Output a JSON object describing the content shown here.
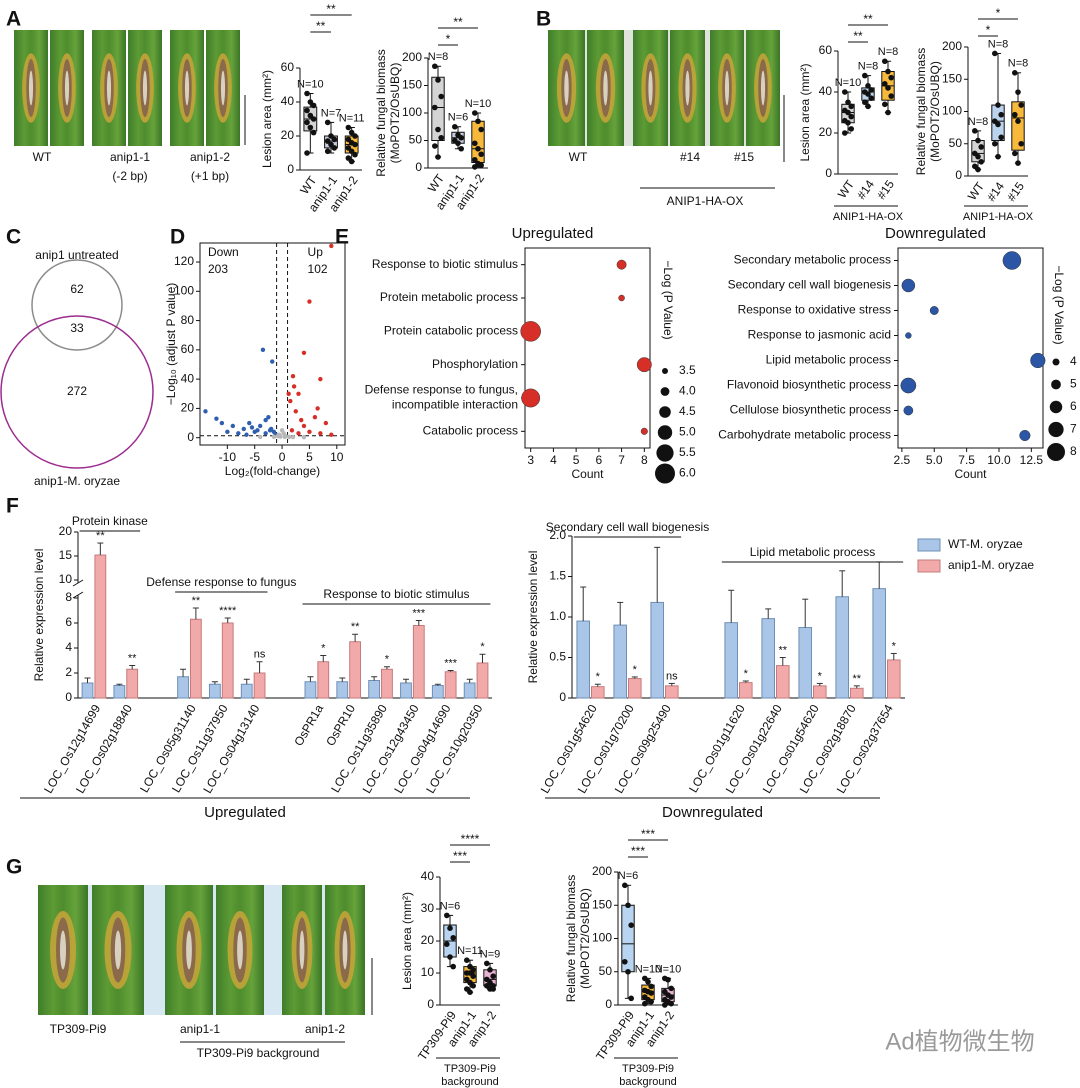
{
  "panel_labels": [
    "A",
    "B",
    "C",
    "D",
    "E",
    "F",
    "G"
  ],
  "photos": [
    {
      "captions": [
        [
          "WT"
        ],
        [
          "anip1-1",
          "(-2 bp)"
        ],
        [
          "anip1-2",
          "(+1 bp)"
        ]
      ]
    },
    {
      "captions": [
        [
          "WT"
        ],
        [
          "#14"
        ],
        [
          "#15"
        ]
      ],
      "group_label": "ANIP1-HA-OX"
    },
    {
      "captions": [
        [
          "TP309-Pi9"
        ],
        [
          "anip1-1"
        ],
        [
          "anip1-2"
        ]
      ],
      "group_label": "TP309-Pi9 background"
    }
  ],
  "venn": {
    "set_labels": [
      "anip1 untreated",
      "anip1-M. oryzae"
    ],
    "only_first": 62,
    "overlap": 33,
    "only_second": 272
  },
  "watermark": "Ad植物微生物",
  "chart_data": [
    {
      "type": "box",
      "ylabel": [
        "Lesion area (mm²)"
      ],
      "categories": [
        "WT",
        "anip1-1",
        "anip1-2"
      ],
      "colors": [
        "#d4d4d4",
        "#c8cbe0",
        "#f6b93b"
      ],
      "ylim": [
        0,
        60
      ],
      "yticks": [
        0,
        20,
        40,
        60
      ],
      "n_labels": [
        "N=10",
        "N=7",
        "N=11"
      ],
      "significance": [
        null,
        "**",
        "**"
      ],
      "boxes": [
        {
          "min": 10,
          "q1": 23,
          "median": 30,
          "q3": 37,
          "max": 45,
          "points": [
            45,
            40,
            38,
            35,
            32,
            30,
            28,
            25,
            22,
            10
          ]
        },
        {
          "min": 10,
          "q1": 13,
          "median": 17,
          "q3": 20,
          "max": 28,
          "points": [
            28,
            20,
            18,
            17,
            15,
            13,
            11
          ]
        },
        {
          "min": 5,
          "q1": 10,
          "median": 15,
          "q3": 20,
          "max": 25,
          "points": [
            25,
            22,
            20,
            18,
            16,
            15,
            13,
            11,
            9,
            7,
            5
          ]
        }
      ]
    },
    {
      "type": "box",
      "ylabel": [
        "Relative fungal biomass",
        "(MoPOT2/OsUBQ)"
      ],
      "categories": [
        "WT",
        "anip1-1",
        "anip1-2"
      ],
      "colors": [
        "#d4d4d4",
        "#c5cbe0",
        "#f6b93b"
      ],
      "ylim": [
        0,
        200
      ],
      "yticks": [
        0,
        50,
        100,
        150,
        200
      ],
      "n_labels": [
        "N=8",
        "N=6",
        "N=10"
      ],
      "significance": [
        null,
        "*",
        "**"
      ],
      "boxes": [
        {
          "min": 20,
          "q1": 50,
          "median": 110,
          "q3": 165,
          "max": 185,
          "points": [
            185,
            160,
            130,
            110,
            70,
            55,
            40,
            20
          ]
        },
        {
          "min": 35,
          "q1": 45,
          "median": 55,
          "q3": 65,
          "max": 75,
          "points": [
            75,
            60,
            55,
            50,
            45,
            35
          ]
        },
        {
          "min": 2,
          "q1": 10,
          "median": 35,
          "q3": 85,
          "max": 100,
          "points": [
            100,
            85,
            70,
            45,
            35,
            25,
            15,
            8,
            5,
            2
          ]
        }
      ]
    },
    {
      "type": "box",
      "ylabel": [
        "Lesion area (mm²)"
      ],
      "categories": [
        "WT",
        "#14",
        "#15"
      ],
      "colors": [
        "#d4d4d4",
        "#bcd3ee",
        "#f6b93b"
      ],
      "group_label": [
        "ANIP1-HA-OX"
      ],
      "ylim": [
        0,
        60
      ],
      "yticks": [
        0,
        20,
        40,
        60
      ],
      "n_labels": [
        "N=10",
        "N=8",
        "N=8"
      ],
      "significance": [
        null,
        "**",
        "**"
      ],
      "boxes": [
        {
          "min": 20,
          "q1": 25,
          "median": 30,
          "q3": 34,
          "max": 40,
          "points": [
            40,
            35,
            33,
            31,
            30,
            28,
            26,
            25,
            22,
            20
          ]
        },
        {
          "min": 33,
          "q1": 36,
          "median": 40,
          "q3": 42,
          "max": 48,
          "points": [
            48,
            43,
            41,
            40,
            39,
            37,
            35,
            33
          ]
        },
        {
          "min": 30,
          "q1": 36,
          "median": 43,
          "q3": 50,
          "max": 55,
          "points": [
            55,
            50,
            47,
            44,
            42,
            38,
            34,
            30
          ]
        }
      ]
    },
    {
      "type": "box",
      "ylabel": [
        "Relative fungal biomass",
        "(MoPOT2/OsUBQ)"
      ],
      "categories": [
        "WT",
        "#14",
        "#15"
      ],
      "colors": [
        "#d4d4d4",
        "#bcd3ee",
        "#f6b93b"
      ],
      "group_label": [
        "ANIP1-HA-OX"
      ],
      "ylim": [
        0,
        200
      ],
      "yticks": [
        0,
        50,
        100,
        150,
        200
      ],
      "n_labels": [
        "N=8",
        "N=8",
        "N=8"
      ],
      "significance": [
        null,
        "*",
        "*"
      ],
      "boxes": [
        {
          "min": 10,
          "q1": 22,
          "median": 35,
          "q3": 55,
          "max": 70,
          "points": [
            70,
            55,
            45,
            35,
            30,
            22,
            15,
            10
          ]
        },
        {
          "min": 30,
          "q1": 55,
          "median": 85,
          "q3": 110,
          "max": 190,
          "points": [
            190,
            110,
            95,
            85,
            80,
            60,
            50,
            30
          ]
        },
        {
          "min": 20,
          "q1": 40,
          "median": 90,
          "q3": 115,
          "max": 160,
          "points": [
            160,
            130,
            110,
            95,
            85,
            50,
            35,
            20
          ]
        }
      ]
    },
    {
      "type": "volcano",
      "xlabel": "Log₂(fold-change)",
      "ylabel": [
        "−Log₁₀ (adjust P value)"
      ],
      "down_label": "Down",
      "down_count": 203,
      "up_label": "Up",
      "up_count": 102,
      "xlim": [
        -15,
        11.5
      ],
      "xticks": [
        -10,
        -5,
        0,
        5,
        10
      ],
      "ylim": [
        -5,
        133
      ],
      "yticks": [
        0,
        20,
        40,
        60,
        80,
        100,
        120
      ],
      "thresholds": {
        "x": [
          -1,
          1
        ],
        "y": 1.3
      },
      "series": [
        {
          "color": "#2f5fae",
          "x": [
            -14,
            -12,
            -11,
            -9,
            -7,
            -6,
            -5,
            -4,
            -3,
            -2.5,
            -2,
            -1.5,
            -3.5,
            -1.8,
            -2.2,
            -8,
            -4.5,
            -1.2,
            -6.5,
            -10,
            -3,
            -5.5
          ],
          "y": [
            18,
            13,
            10,
            8,
            6,
            10,
            4,
            8,
            3,
            14,
            6,
            4,
            60,
            52,
            5,
            3,
            5,
            2,
            2,
            4,
            12,
            7
          ]
        },
        {
          "color": "#b8b8b8",
          "x": [
            -0.5,
            0.3,
            0.7,
            -0.8,
            0,
            0.5,
            -0.3,
            1.3,
            -1.5,
            2,
            4,
            -4
          ],
          "y": [
            2,
            3,
            1,
            1,
            5,
            0.5,
            0.8,
            0.5,
            0.6,
            0.4,
            0.3,
            0.5
          ]
        },
        {
          "color": "#d62f27",
          "x": [
            9,
            5,
            7,
            4,
            2,
            3,
            1.5,
            2.5,
            6,
            8,
            4,
            1.8,
            3,
            5,
            9,
            7,
            2.2,
            1.2,
            3.5,
            6.5
          ],
          "y": [
            131,
            93,
            40,
            58,
            42,
            30,
            25,
            18,
            14,
            10,
            8,
            5,
            3,
            4,
            2,
            3,
            35,
            30,
            12,
            20
          ]
        }
      ]
    },
    {
      "type": "bubble",
      "title": "Upregulated",
      "xlabel": "Count",
      "color": "#d62f27",
      "categories": [
        "Response to biotic stimulus",
        "Protein metabolic process",
        "Protein catabolic process",
        "Phosphorylation",
        [
          "Defense response to fungus,",
          "incompatible interaction"
        ],
        "Catabolic process"
      ],
      "values": [
        7,
        7,
        3,
        8,
        3,
        8
      ],
      "sizes": [
        4.1,
        3.5,
        6.0,
        5.0,
        5.7,
        3.6
      ],
      "xlim": [
        2.75,
        8.25
      ],
      "xticks": [
        3,
        4,
        5,
        6,
        7,
        8
      ],
      "size_legend": {
        "title": "−Log (P Value)",
        "values": [
          3.5,
          {
            "value": 4,
            "label": "4.0"
          },
          4.5,
          {
            "value": 5,
            "label": "5.0"
          },
          5.5,
          {
            "value": 6,
            "label": "6.0"
          }
        ]
      }
    },
    {
      "type": "bubble",
      "title": "Downregulated",
      "xlabel": "Count",
      "color": "#2b55a5",
      "categories": [
        "Secondary metabolic process",
        "Secondary cell wall biogenesis",
        "Response to oxidative stress",
        "Response to jasmonic acid",
        "Lipid metabolic process",
        "Flavonoid biosynthetic process",
        "Cellulose biosynthetic process",
        "Carbohydrate metabolic process"
      ],
      "values": [
        11,
        3,
        5,
        3,
        13,
        3,
        3,
        12
      ],
      "sizes": [
        8,
        6.2,
        4.5,
        3.6,
        6.8,
        7,
        4.8,
        5.3
      ],
      "xlim": [
        2.2,
        13.4
      ],
      "xticks": [
        2.5,
        {
          "value": 5,
          "label": "5.0"
        },
        7.5,
        {
          "value": 10,
          "label": "10.0"
        },
        12.5
      ],
      "size_legend": {
        "title": "−Log (P Value)",
        "values": [
          4,
          5,
          6,
          7,
          8
        ]
      }
    },
    {
      "type": "bars",
      "ylabel": [
        "Relative expression level"
      ],
      "group_label": "Upregulated",
      "groups": [
        {
          "label": "Protein kinase",
          "categories": [
            "LOC_Os12g14699",
            "LOC_Os02g18840"
          ]
        },
        {
          "label": "Defense response to fungus",
          "categories": [
            "LOC_Os05g31140",
            "LOC_Os11g37950",
            "LOC_Os04g13140"
          ]
        },
        {
          "label": "Response to biotic stimulus",
          "categories": [
            "OsPR1a",
            "OsPR10",
            "LOC_Os11g35890",
            "LOC_Os12g43450",
            "LOC_Os04g14690",
            "LOC_Os10g20350"
          ]
        }
      ],
      "series": [
        {
          "color": "#a9c6e8",
          "values": [
            1.2,
            1.0,
            1.7,
            1.1,
            1.1,
            1.3,
            1.3,
            1.4,
            1.2,
            1.0,
            1.2
          ],
          "errors": [
            0.4,
            0.1,
            0.6,
            0.2,
            0.4,
            0.4,
            0.3,
            0.3,
            0.3,
            0.1,
            0.3
          ]
        },
        {
          "color": "#f2a9a9",
          "values": [
            15.2,
            2.3,
            6.3,
            6.0,
            2.0,
            2.9,
            4.5,
            2.3,
            5.8,
            2.1,
            2.8
          ],
          "errors": [
            2.5,
            0.3,
            0.9,
            0.4,
            0.9,
            0.5,
            0.6,
            0.2,
            0.4,
            0.1,
            0.7
          ]
        }
      ],
      "significance": [
        "**",
        "**",
        "**",
        "****",
        "ns",
        "*",
        "**",
        "*",
        "***",
        "***",
        "*"
      ],
      "ylim": [
        0,
        20
      ],
      "axis_break": [
        8,
        10
      ],
      "yticks": [
        0,
        2,
        4,
        6,
        8,
        10,
        15,
        20
      ]
    },
    {
      "type": "bars",
      "ylabel": [
        "Relative expression level"
      ],
      "group_label": "Downregulated",
      "groups": [
        {
          "label": "Secondary cell wall biogenesis",
          "categories": [
            "LOC_Os01g54620",
            "LOC_Os01g70200",
            "LOC_Os09g25490"
          ]
        },
        {
          "label": "Lipid metabolic process",
          "categories": [
            "LOC_Os01g11620",
            "LOC_Os01g22640",
            "LOC_Os01g54620",
            "LOC_Os02g18870",
            "LOC_Os02g37654"
          ]
        }
      ],
      "series": [
        {
          "name": "WT-M. oryzae",
          "color": "#a9c6e8",
          "values": [
            0.95,
            0.9,
            1.18,
            0.93,
            0.98,
            0.87,
            1.25,
            1.35
          ],
          "errors": [
            0.42,
            0.28,
            0.68,
            0.4,
            0.12,
            0.35,
            0.32,
            0.33
          ]
        },
        {
          "name": "anip1-M. oryzae",
          "color": "#f2a9a9",
          "values": [
            0.14,
            0.24,
            0.15,
            0.19,
            0.4,
            0.15,
            0.12,
            0.47
          ],
          "errors": [
            0.03,
            0.02,
            0.03,
            0.02,
            0.1,
            0.03,
            0.03,
            0.08
          ]
        }
      ],
      "significance": [
        "*",
        "*",
        "ns",
        "*",
        "**",
        "*",
        "**",
        "*"
      ],
      "ylim": [
        0,
        2
      ],
      "yticks": [
        0,
        0.5,
        {
          "value": 1,
          "label": "1.0"
        },
        1.5,
        {
          "value": 2,
          "label": "2.0"
        }
      ]
    },
    {
      "type": "box",
      "ylabel": [
        "Lesion area (mm²)"
      ],
      "categories": [
        "TP309-Pi9",
        "anip1-1",
        "anip1-2"
      ],
      "colors": [
        "#b9d4f0",
        "#f6b93b",
        "#e9b3d4"
      ],
      "group_label": [
        "TP309-Pi9",
        "background"
      ],
      "ylim": [
        0,
        40
      ],
      "yticks": [
        0,
        10,
        20,
        30,
        40
      ],
      "n_labels": [
        "N=6",
        "N=11",
        "N=9"
      ],
      "significance": [
        null,
        "***",
        "****"
      ],
      "boxes": [
        {
          "min": 12,
          "q1": 15,
          "median": 20,
          "q3": 25,
          "max": 28,
          "points": [
            28,
            24,
            21,
            19,
            15,
            12
          ]
        },
        {
          "min": 4,
          "q1": 7,
          "median": 10,
          "q3": 12,
          "max": 14,
          "points": [
            14,
            12,
            11,
            10,
            10,
            9,
            8,
            7,
            6,
            5,
            4
          ]
        },
        {
          "min": 5,
          "q1": 6,
          "median": 8,
          "q3": 11,
          "max": 13,
          "points": [
            13,
            11,
            9,
            8,
            7,
            6,
            6,
            5,
            5
          ]
        }
      ]
    },
    {
      "type": "box",
      "ylabel": [
        "Relative fungal biomass",
        "(MoPOT2/OsUBQ)"
      ],
      "categories": [
        "TP309-Pi9",
        "anip1-1",
        "anip1-2"
      ],
      "colors": [
        "#b9d4f0",
        "#f6b93b",
        "#e9b3d4"
      ],
      "group_label": [
        "TP309-Pi9",
        "background"
      ],
      "ylim": [
        0,
        200
      ],
      "yticks": [
        0,
        50,
        100,
        150,
        200
      ],
      "n_labels": [
        "N=6",
        "N=10",
        "N=10"
      ],
      "significance": [
        null,
        "***",
        "***"
      ],
      "boxes": [
        {
          "min": 10,
          "q1": 50,
          "median": 92,
          "q3": 150,
          "max": 180,
          "points": [
            180,
            150,
            120,
            65,
            50,
            10
          ]
        },
        {
          "min": 2,
          "q1": 8,
          "median": 20,
          "q3": 30,
          "max": 40,
          "points": [
            40,
            35,
            28,
            22,
            20,
            18,
            12,
            8,
            5,
            2
          ]
        },
        {
          "min": 0,
          "q1": 5,
          "median": 15,
          "q3": 25,
          "max": 40,
          "points": [
            40,
            38,
            25,
            20,
            15,
            12,
            8,
            5,
            2,
            0
          ]
        }
      ]
    }
  ]
}
